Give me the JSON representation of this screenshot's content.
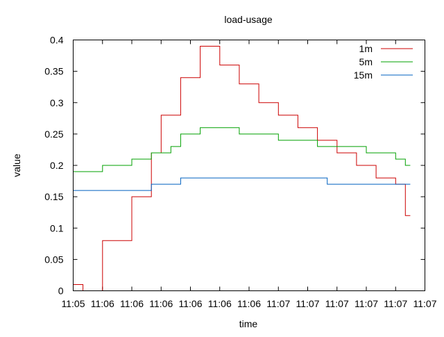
{
  "chart_data": {
    "type": "line",
    "title": "load-usage",
    "xlabel": "time",
    "ylabel": "value",
    "ylim": [
      0,
      0.4
    ],
    "yticks": [
      "0",
      "0.05",
      "0.1",
      "0.15",
      "0.2",
      "0.25",
      "0.3",
      "0.35",
      "0.4"
    ],
    "xticks": [
      "11:05",
      "11:06",
      "11:06",
      "11:06",
      "11:06",
      "11:06",
      "11:06",
      "11:07",
      "11:07",
      "11:07",
      "11:07",
      "11:07",
      "11:07"
    ],
    "xlim": [
      0,
      36
    ],
    "legend_position": "top-right",
    "grid": false,
    "series": [
      {
        "name": "1m",
        "color": "#cc0000",
        "x": [
          0,
          1,
          2,
          3,
          4,
          5,
          6,
          7,
          8,
          9,
          10,
          11,
          12,
          13,
          14,
          15,
          16,
          17,
          18,
          19,
          20,
          21,
          22,
          23,
          24,
          25,
          26,
          27,
          28,
          29,
          30,
          31,
          32,
          33,
          34
        ],
        "y": [
          0.01,
          0.0,
          0.0,
          0.08,
          0.08,
          0.08,
          0.15,
          0.15,
          0.22,
          0.28,
          0.28,
          0.34,
          0.34,
          0.39,
          0.39,
          0.36,
          0.36,
          0.33,
          0.33,
          0.3,
          0.3,
          0.28,
          0.28,
          0.26,
          0.26,
          0.24,
          0.24,
          0.22,
          0.22,
          0.2,
          0.2,
          0.18,
          0.18,
          0.17,
          0.12
        ]
      },
      {
        "name": "5m",
        "color": "#00a000",
        "x": [
          0,
          1,
          2,
          3,
          4,
          5,
          6,
          7,
          8,
          9,
          10,
          11,
          12,
          13,
          14,
          15,
          16,
          17,
          18,
          19,
          20,
          21,
          22,
          23,
          24,
          25,
          26,
          27,
          28,
          29,
          30,
          31,
          32,
          33,
          34
        ],
        "y": [
          0.19,
          0.19,
          0.19,
          0.2,
          0.2,
          0.2,
          0.21,
          0.21,
          0.22,
          0.22,
          0.23,
          0.25,
          0.25,
          0.26,
          0.26,
          0.26,
          0.26,
          0.25,
          0.25,
          0.25,
          0.25,
          0.24,
          0.24,
          0.24,
          0.24,
          0.23,
          0.23,
          0.23,
          0.23,
          0.23,
          0.22,
          0.22,
          0.22,
          0.21,
          0.2
        ]
      },
      {
        "name": "15m",
        "color": "#0060c0",
        "x": [
          0,
          1,
          2,
          3,
          4,
          5,
          6,
          7,
          8,
          9,
          10,
          11,
          12,
          13,
          14,
          15,
          16,
          17,
          18,
          19,
          20,
          21,
          22,
          23,
          24,
          25,
          26,
          27,
          28,
          29,
          30,
          31,
          32,
          33,
          34
        ],
        "y": [
          0.16,
          0.16,
          0.16,
          0.16,
          0.16,
          0.16,
          0.16,
          0.16,
          0.17,
          0.17,
          0.17,
          0.18,
          0.18,
          0.18,
          0.18,
          0.18,
          0.18,
          0.18,
          0.18,
          0.18,
          0.18,
          0.18,
          0.18,
          0.18,
          0.18,
          0.18,
          0.17,
          0.17,
          0.17,
          0.17,
          0.17,
          0.17,
          0.17,
          0.17,
          0.17
        ]
      }
    ]
  }
}
